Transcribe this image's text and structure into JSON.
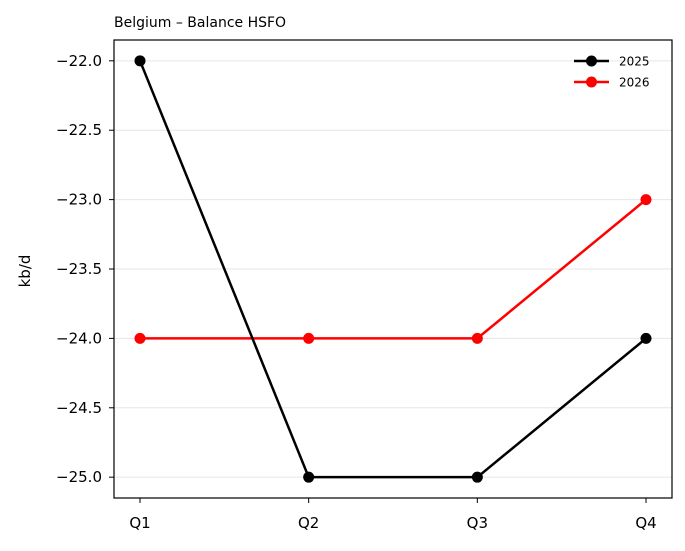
{
  "chart_data": {
    "type": "line",
    "title": "Belgium – Balance HSFO",
    "xlabel": "",
    "ylabel": "kb/d",
    "categories": [
      "Q1",
      "Q2",
      "Q3",
      "Q4"
    ],
    "ylim": [
      -25.15,
      -21.85
    ],
    "yticks": [
      -22.0,
      -22.5,
      -23.0,
      -23.5,
      -24.0,
      -24.5,
      -25.0
    ],
    "ytick_labels": [
      "−22.0",
      "−22.5",
      "−23.0",
      "−23.5",
      "−24.0",
      "−24.5",
      "−25.0"
    ],
    "grid": "horizontal",
    "legend_position": "top-right",
    "series": [
      {
        "name": "2025",
        "color": "#000000",
        "marker": "circle",
        "values": [
          -22.0,
          -25.0,
          -25.0,
          -24.0
        ]
      },
      {
        "name": "2026",
        "color": "#ff0000",
        "marker": "circle",
        "values": [
          -24.0,
          -24.0,
          -24.0,
          -23.0
        ]
      }
    ]
  }
}
